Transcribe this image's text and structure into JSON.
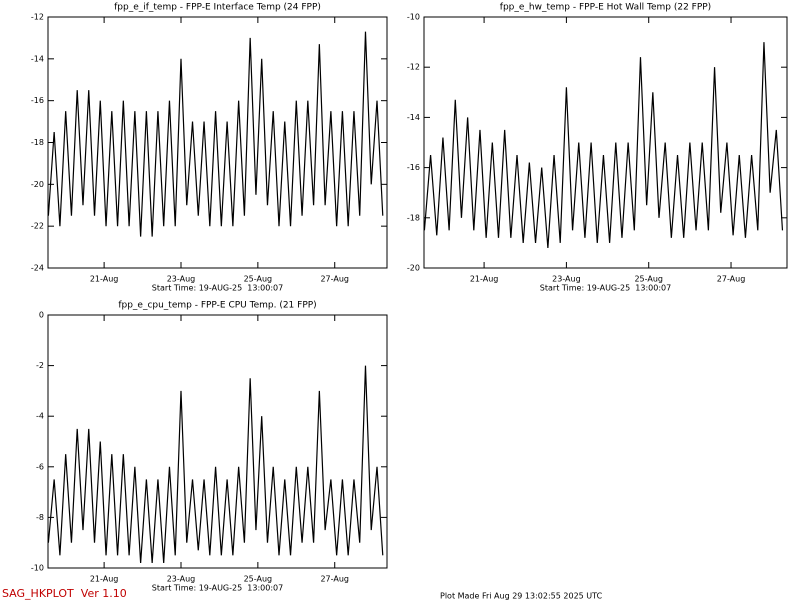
{
  "chart_data": [
    {
      "type": "line",
      "title": "fpp_e_if_temp - FPP-E Interface Temp (24 FPP)",
      "xlabel": "Start Time: 19-AUG-25  13:00:07",
      "x": [
        19.55,
        19.7,
        19.85,
        20.0,
        20.15,
        20.3,
        20.45,
        20.6,
        20.75,
        20.9,
        21.05,
        21.2,
        21.35,
        21.5,
        21.65,
        21.8,
        21.95,
        22.1,
        22.25,
        22.4,
        22.55,
        22.7,
        22.85,
        23.0,
        23.15,
        23.3,
        23.45,
        23.6,
        23.75,
        23.9,
        24.05,
        24.2,
        24.35,
        24.5,
        24.65,
        24.8,
        24.95,
        25.1,
        25.25,
        25.4,
        25.55,
        25.7,
        25.85,
        26.0,
        26.15,
        26.3,
        26.45,
        26.6,
        26.75,
        26.9,
        27.05,
        27.2,
        27.35,
        27.5,
        27.65,
        27.8,
        27.95,
        28.1,
        28.25
      ],
      "series": [
        {
          "color": "#000000",
          "values": [
            -21.5,
            -17.5,
            -22,
            -16.5,
            -21.5,
            -15.5,
            -21,
            -15.5,
            -21.5,
            -16,
            -22,
            -16.5,
            -22,
            -16,
            -22,
            -16.5,
            -22.5,
            -16.5,
            -22.5,
            -16.5,
            -22,
            -16,
            -22,
            -14,
            -21,
            -17,
            -21.5,
            -17,
            -22,
            -16.5,
            -22,
            -17,
            -22,
            -16,
            -21.5,
            -13,
            -20.5,
            -14,
            -21,
            -16.5,
            -22,
            -17,
            -22,
            -16,
            -21.5,
            -16,
            -21,
            -13.3,
            -21,
            -16.5,
            -22,
            -16.5,
            -22,
            -16.5,
            -21.5,
            -12.7,
            -20,
            -16,
            -21.5
          ]
        }
      ],
      "xlim": [
        19.54,
        28.36
      ],
      "xticks": [
        {
          "value": 21,
          "label": "21-Aug"
        },
        {
          "value": 23,
          "label": "23-Aug"
        },
        {
          "value": 25,
          "label": "25-Aug"
        },
        {
          "value": 27,
          "label": "27-Aug"
        }
      ],
      "ylim": [
        -24,
        -12
      ],
      "yticks": [
        -24,
        -22,
        -20,
        -18,
        -16,
        -14,
        -12
      ]
    },
    {
      "type": "line",
      "title": "fpp_e_hw_temp - FPP-E Hot Wall Temp (22 FPP)",
      "xlabel": "Start Time: 19-AUG-25  13:00:07",
      "x": [
        19.55,
        19.7,
        19.85,
        20.0,
        20.15,
        20.3,
        20.45,
        20.6,
        20.75,
        20.9,
        21.05,
        21.2,
        21.35,
        21.5,
        21.65,
        21.8,
        21.95,
        22.1,
        22.25,
        22.4,
        22.55,
        22.7,
        22.85,
        23.0,
        23.15,
        23.3,
        23.45,
        23.6,
        23.75,
        23.9,
        24.05,
        24.2,
        24.35,
        24.5,
        24.65,
        24.8,
        24.95,
        25.1,
        25.25,
        25.4,
        25.55,
        25.7,
        25.85,
        26.0,
        26.15,
        26.3,
        26.45,
        26.6,
        26.75,
        26.9,
        27.05,
        27.2,
        27.35,
        27.5,
        27.65,
        27.8,
        27.95,
        28.1,
        28.25
      ],
      "series": [
        {
          "color": "#000000",
          "values": [
            -18.5,
            -15.5,
            -18.7,
            -14.8,
            -18.5,
            -13.3,
            -18,
            -14,
            -18.5,
            -14.5,
            -18.8,
            -15,
            -18.8,
            -14.5,
            -18.8,
            -15.5,
            -19,
            -15.8,
            -19,
            -16,
            -19.2,
            -15.5,
            -19,
            -12.8,
            -18.5,
            -15,
            -18.8,
            -15,
            -19,
            -15.5,
            -19,
            -15,
            -18.8,
            -15,
            -18.5,
            -11.6,
            -17.5,
            -13,
            -18,
            -15,
            -18.8,
            -15.5,
            -18.8,
            -15,
            -18.5,
            -15,
            -18.5,
            -12,
            -17.8,
            -15,
            -18.7,
            -15.5,
            -18.8,
            -15.5,
            -18.5,
            -11,
            -17,
            -14.5,
            -18.5
          ]
        }
      ],
      "xlim": [
        19.54,
        28.36
      ],
      "xticks": [
        {
          "value": 21,
          "label": "21-Aug"
        },
        {
          "value": 23,
          "label": "23-Aug"
        },
        {
          "value": 25,
          "label": "25-Aug"
        },
        {
          "value": 27,
          "label": "27-Aug"
        }
      ],
      "ylim": [
        -20,
        -10
      ],
      "yticks": [
        -20,
        -18,
        -16,
        -14,
        -12,
        -10
      ]
    },
    {
      "type": "line",
      "title": "fpp_e_cpu_temp - FPP-E CPU Temp. (21 FPP)",
      "xlabel": "Start Time: 19-AUG-25  13:00:07",
      "x": [
        19.55,
        19.7,
        19.85,
        20.0,
        20.15,
        20.3,
        20.45,
        20.6,
        20.75,
        20.9,
        21.05,
        21.2,
        21.35,
        21.5,
        21.65,
        21.8,
        21.95,
        22.1,
        22.25,
        22.4,
        22.55,
        22.7,
        22.85,
        23.0,
        23.15,
        23.3,
        23.45,
        23.6,
        23.75,
        23.9,
        24.05,
        24.2,
        24.35,
        24.5,
        24.65,
        24.8,
        24.95,
        25.1,
        25.25,
        25.4,
        25.55,
        25.7,
        25.85,
        26.0,
        26.15,
        26.3,
        26.45,
        26.6,
        26.75,
        26.9,
        27.05,
        27.2,
        27.35,
        27.5,
        27.65,
        27.8,
        27.95,
        28.1,
        28.25
      ],
      "series": [
        {
          "color": "#000000",
          "values": [
            -9,
            -6.5,
            -9.5,
            -5.5,
            -9,
            -4.5,
            -8.5,
            -4.5,
            -9,
            -5,
            -9.5,
            -5.5,
            -9.5,
            -5.5,
            -9.5,
            -6,
            -9.8,
            -6.5,
            -9.8,
            -6.5,
            -9.8,
            -6,
            -9.5,
            -3,
            -9,
            -6.5,
            -9.3,
            -6.5,
            -9.5,
            -6,
            -9.5,
            -6.5,
            -9.5,
            -6,
            -9,
            -2.5,
            -8.5,
            -4,
            -9,
            -6,
            -9.5,
            -6.5,
            -9.5,
            -6,
            -9,
            -6,
            -9,
            -3,
            -8.5,
            -6.5,
            -9.5,
            -6.5,
            -9.5,
            -6.5,
            -9,
            -2,
            -8.5,
            -6,
            -9.5
          ]
        }
      ],
      "xlim": [
        19.54,
        28.36
      ],
      "xticks": [
        {
          "value": 21,
          "label": "21-Aug"
        },
        {
          "value": 23,
          "label": "23-Aug"
        },
        {
          "value": 25,
          "label": "25-Aug"
        },
        {
          "value": 27,
          "label": "27-Aug"
        }
      ],
      "ylim": [
        -10,
        0
      ],
      "yticks": [
        -10,
        -8,
        -6,
        -4,
        -2,
        0
      ]
    }
  ],
  "footer": {
    "program": "SAG_HKPLOT  Ver 1.10",
    "plot_made": "Plot Made Fri Aug 29 13:02:55 2025 UTC"
  }
}
